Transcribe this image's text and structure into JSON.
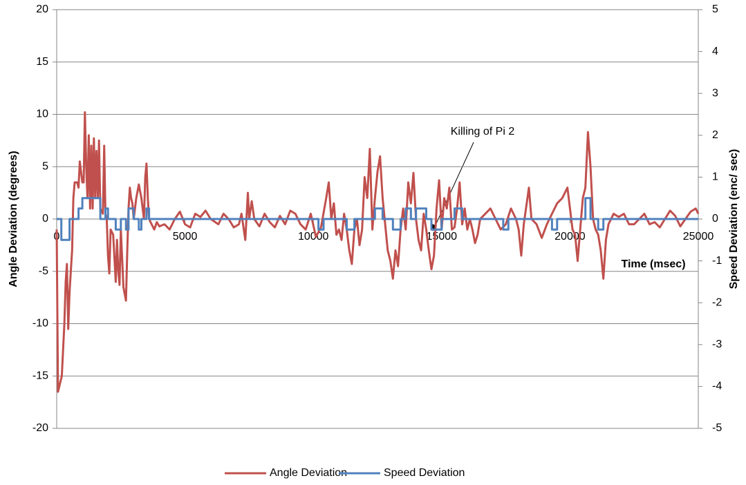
{
  "chart_data": {
    "type": "line",
    "xlabel": "Time (msec)",
    "ylabel": "Angle Deviation (degrees)",
    "y2label": "Speed Deviation (enc/ sec)",
    "annotation": "Killing of Pi 2",
    "xlim": [
      0,
      25000
    ],
    "xticks": [
      0,
      5000,
      10000,
      15000,
      20000,
      25000
    ],
    "ylim": [
      -20,
      20
    ],
    "yticks": [
      -20,
      -15,
      -10,
      -5,
      0,
      5,
      10,
      15,
      20
    ],
    "y2lim": [
      -5,
      5
    ],
    "y2ticks": [
      -5,
      -4,
      -3,
      -2,
      -1,
      0,
      1,
      2,
      3,
      4,
      5
    ],
    "grid": true,
    "legend": "bottom",
    "series": [
      {
        "name": "Angle Deviation",
        "color": "#c0504d",
        "x": [
          0,
          50,
          200,
          300,
          350,
          400,
          450,
          500,
          550,
          600,
          650,
          700,
          800,
          850,
          900,
          1000,
          1050,
          1100,
          1150,
          1200,
          1250,
          1300,
          1350,
          1400,
          1450,
          1500,
          1550,
          1600,
          1650,
          1700,
          1800,
          1850,
          1900,
          1950,
          2000,
          2050,
          2100,
          2200,
          2300,
          2350,
          2400,
          2450,
          2500,
          2600,
          2700,
          2750,
          2800,
          2850,
          2900,
          2950,
          3000,
          3100,
          3200,
          3300,
          3400,
          3450,
          3500,
          3550,
          3600,
          3700,
          3800,
          3900,
          4000,
          4200,
          4400,
          4600,
          4800,
          5000,
          5200,
          5400,
          5600,
          5800,
          6000,
          6300,
          6500,
          6700,
          6900,
          7100,
          7200,
          7350,
          7450,
          7500,
          7600,
          7700,
          7900,
          8100,
          8300,
          8500,
          8700,
          8900,
          9100,
          9300,
          9500,
          9700,
          9900,
          10100,
          10300,
          10500,
          10600,
          10700,
          10800,
          10900,
          11000,
          11100,
          11200,
          11300,
          11400,
          11500,
          11600,
          11700,
          11800,
          11900,
          12000,
          12100,
          12200,
          12300,
          12400,
          12500,
          12600,
          12700,
          12800,
          12900,
          13000,
          13100,
          13200,
          13300,
          13400,
          13500,
          13600,
          13700,
          13800,
          13900,
          14000,
          14100,
          14200,
          14300,
          14400,
          14500,
          14600,
          14700,
          14800,
          14900,
          15000,
          15100,
          15200,
          15300,
          15400,
          15500,
          15600,
          15700,
          15800,
          15900,
          16000,
          16100,
          16200,
          16300,
          16400,
          16500,
          16700,
          16900,
          17100,
          17300,
          17500,
          17700,
          17900,
          18000,
          18100,
          18200,
          18400,
          18500,
          18700,
          18900,
          19100,
          19300,
          19500,
          19700,
          19900,
          20000,
          20100,
          20200,
          20300,
          20400,
          20500,
          20600,
          20700,
          20800,
          20900,
          21000,
          21100,
          21200,
          21300,
          21400,
          21500,
          21700,
          21900,
          22100,
          22300,
          22500,
          22700,
          22900,
          23100,
          23300,
          23500,
          23700,
          23900,
          24100,
          24300,
          24500,
          24700,
          24900,
          25000
        ],
        "values": [
          -1,
          -16.5,
          -15,
          -10,
          -6,
          -4.3,
          -10.5,
          -7,
          -5,
          -3,
          2,
          3.5,
          3.5,
          3,
          5.5,
          3.5,
          3.5,
          10.2,
          5,
          2,
          8,
          1,
          7,
          1,
          7.7,
          2,
          6.5,
          2,
          7.5,
          1,
          0.5,
          7,
          0.5,
          0,
          -3.5,
          -5.2,
          -1,
          -1.5,
          -6,
          -2,
          -5,
          -6.3,
          -1,
          -6.5,
          -7.8,
          -3,
          1,
          3,
          2,
          1.5,
          0,
          2,
          3.3,
          2,
          0,
          4,
          5.3,
          2,
          0,
          -0.5,
          -1,
          -0.3,
          -0.7,
          -0.5,
          -1,
          0,
          0.7,
          -0.5,
          -0.8,
          0.5,
          0.2,
          0.8,
          0,
          -0.5,
          0.5,
          0,
          -0.8,
          -0.5,
          0.5,
          -2,
          2.5,
          0,
          1.7,
          0,
          -0.7,
          0.5,
          -0.3,
          -0.8,
          0.3,
          -0.5,
          0.8,
          0.5,
          -0.5,
          -1,
          0.5,
          -1.7,
          -0.8,
          2,
          3.5,
          0,
          1.5,
          -1.5,
          -1,
          -2,
          0.5,
          -1,
          -3,
          -4.3,
          -1,
          0,
          -2.5,
          -1,
          4,
          2,
          6.7,
          -1,
          2,
          4.5,
          6,
          2,
          -0.5,
          -3,
          -4,
          -5.7,
          -3,
          -4.5,
          -1,
          1,
          -1,
          3.5,
          1.5,
          4.4,
          0,
          -2,
          -3,
          0.5,
          -1,
          -3,
          -4.8,
          -3.5,
          1,
          3.7,
          -1,
          2,
          1,
          3,
          -1,
          -0.8,
          1,
          3.5,
          -0.5,
          1,
          -1,
          0,
          -1,
          -2.3,
          -1.5,
          0,
          0.5,
          1,
          0,
          -1,
          -0.5,
          1,
          0,
          -1,
          -3.5,
          -0.5,
          3,
          0,
          -0.5,
          -1.8,
          -0.5,
          0.5,
          1.5,
          2,
          3,
          1,
          -1,
          -1.5,
          -4,
          -1,
          2,
          3,
          8.3,
          5,
          0,
          -1,
          -1.5,
          -3,
          -5.7,
          -2,
          -0.5,
          0.5,
          0.2,
          0.5,
          -0.5,
          -0.5,
          0,
          0.5,
          -0.5,
          -0.3,
          -0.8,
          0,
          0.8,
          0.3,
          -0.7,
          0,
          0.7,
          1,
          0.5
        ]
      },
      {
        "name": "Speed Deviation",
        "color": "#4f81bd",
        "axis": "y2",
        "x": [
          0,
          180,
          180,
          500,
          500,
          850,
          850,
          1000,
          1000,
          1700,
          1700,
          1900,
          1900,
          2000,
          2000,
          2300,
          2300,
          2500,
          2500,
          2700,
          2700,
          2800,
          2800,
          3000,
          3000,
          3200,
          3200,
          3300,
          3300,
          3500,
          3500,
          3600,
          3600,
          10200,
          10200,
          10400,
          10400,
          11300,
          11300,
          11600,
          11600,
          12400,
          12400,
          12700,
          12700,
          13100,
          13100,
          13400,
          13400,
          13600,
          13600,
          13800,
          13800,
          14000,
          14000,
          14400,
          14400,
          14600,
          14600,
          15000,
          15000,
          15500,
          15500,
          15800,
          15800,
          17400,
          17400,
          17600,
          17600,
          19300,
          19300,
          19500,
          19500,
          20600,
          20600,
          20800,
          20800,
          21100,
          21100,
          21300,
          21300,
          25000
        ],
        "values": [
          0,
          0,
          -0.5,
          -0.5,
          0,
          0,
          0.25,
          0.25,
          0.5,
          0.5,
          0,
          0,
          0.25,
          0.25,
          0,
          0,
          -0.25,
          -0.25,
          0,
          0,
          -0.25,
          -0.25,
          0.25,
          0.25,
          0,
          0,
          -0.25,
          -0.25,
          0,
          0,
          0.25,
          0.25,
          0,
          0,
          -0.25,
          -0.25,
          0,
          0,
          -0.25,
          -0.25,
          0,
          0,
          0.25,
          0.25,
          0,
          0,
          -0.25,
          -0.25,
          0,
          0,
          0.25,
          0.25,
          0,
          0,
          0.25,
          0.25,
          0,
          0,
          -0.25,
          -0.25,
          0,
          0,
          0.25,
          0.25,
          0,
          0,
          -0.25,
          -0.25,
          0,
          0,
          -0.25,
          -0.25,
          0,
          0,
          0.5,
          0.5,
          0,
          0,
          -0.25,
          -0.25,
          0,
          0
        ]
      }
    ]
  }
}
